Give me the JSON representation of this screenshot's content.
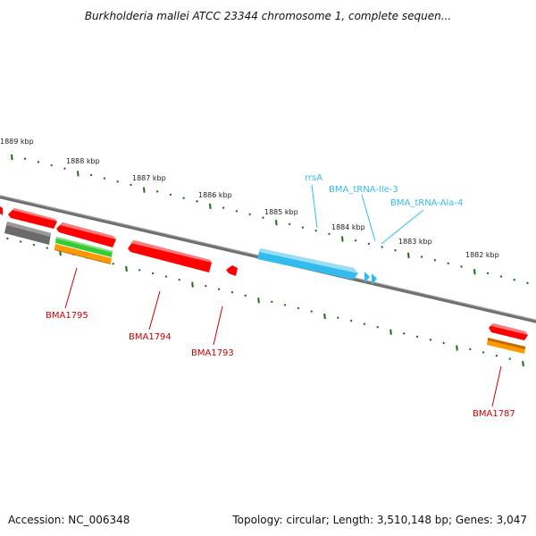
{
  "title": "Burkholderia mallei ATCC 23344 chromosome 1, complete sequen...",
  "accession_text": "Accession: NC_006348",
  "summary_text": "Topology: circular; Length: 3,510,148 bp; Genes: 3,047",
  "colors": {
    "backbone": "#7f7f7f",
    "tick": "#1a6b1a",
    "red": "#ff0000",
    "gray": "#6a6a6a",
    "green": "#33cc33",
    "orange": "#ff9900",
    "blue": "#33bbee",
    "label_red": "#cc0000",
    "label_blue": "#33bbee"
  },
  "kbp_ticks": [
    "1889 kbp",
    "1888 kbp",
    "1887 kbp",
    "1886 kbp",
    "1885 kbp",
    "1884 kbp",
    "1883 kbp",
    "1882 kbp"
  ],
  "features": [
    {
      "name": "BMA1795",
      "color": "red"
    },
    {
      "name": "BMA1794",
      "color": "red"
    },
    {
      "name": "BMA1793",
      "color": "red"
    },
    {
      "name": "BMA1787",
      "color": "orange"
    }
  ],
  "rna_features": [
    {
      "name": "rrsA"
    },
    {
      "name": "BMA_tRNA-Ile-3"
    },
    {
      "name": "BMA_tRNA-Ala-4"
    }
  ]
}
